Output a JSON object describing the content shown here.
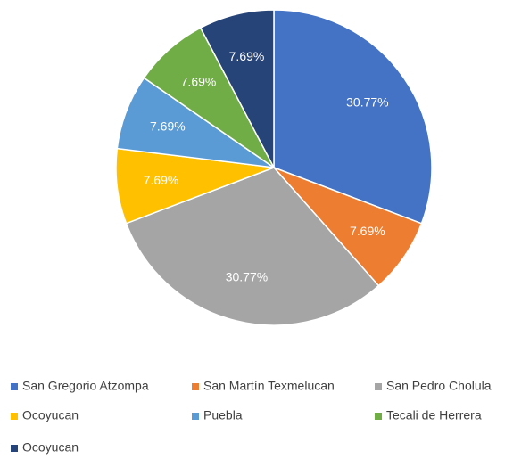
{
  "chart_data": {
    "type": "pie",
    "categories": [
      "San Gregorio Atzompa",
      "San Martín Texmelucan",
      "San Pedro Cholula",
      "Ocoyucan",
      "Puebla",
      "Tecali de Herrera",
      "Ocoyucan"
    ],
    "values": [
      30.77,
      7.69,
      30.77,
      7.69,
      7.69,
      7.69,
      7.69
    ],
    "value_labels": [
      "30.77%",
      "7.69%",
      "30.77%",
      "7.69%",
      "7.69%",
      "7.69%",
      "7.69%"
    ],
    "colors": [
      "#4472c4",
      "#ed7d31",
      "#a5a5a5",
      "#ffc000",
      "#5b9bd5",
      "#70ad47",
      "#264478"
    ],
    "legend": "bottom"
  }
}
